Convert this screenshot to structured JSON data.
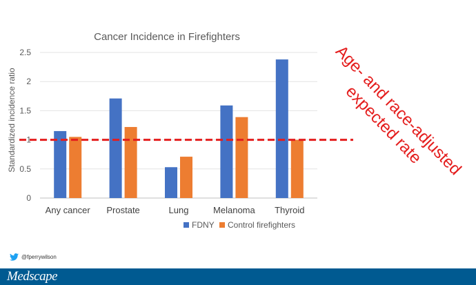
{
  "chart_data": {
    "type": "bar",
    "title": "Cancer Incidence in Firefighters",
    "ylabel": "Standardized incidence ratio",
    "xlabel": "",
    "ylim": [
      0,
      2.5
    ],
    "yticks": [
      "0",
      "0.5",
      "1",
      "1.5",
      "2",
      "2.5"
    ],
    "categories": [
      "Any cancer",
      "Prostate",
      "Lung",
      "Melanoma",
      "Thyroid"
    ],
    "series": [
      {
        "name": "FDNY",
        "color": "#4472c4",
        "values": [
          1.15,
          1.71,
          0.53,
          1.59,
          2.38
        ]
      },
      {
        "name": "Control firefighters",
        "color": "#ed7d31",
        "values": [
          1.05,
          1.22,
          0.71,
          1.39,
          1.0
        ]
      }
    ],
    "reference_line": {
      "value": 1.0,
      "color": "#e41d1d",
      "style": "dashed"
    },
    "annotation": {
      "lines": [
        "Age- and race-adjusted",
        "expected rate"
      ],
      "color": "#e41d1d"
    },
    "grid": true,
    "legend_position": "bottom"
  },
  "footer": {
    "twitter_handle": "@fperrywilson",
    "brand": "Medscape",
    "twitter_icon": "twitter-bird-icon",
    "bar_color": "#005a91"
  }
}
